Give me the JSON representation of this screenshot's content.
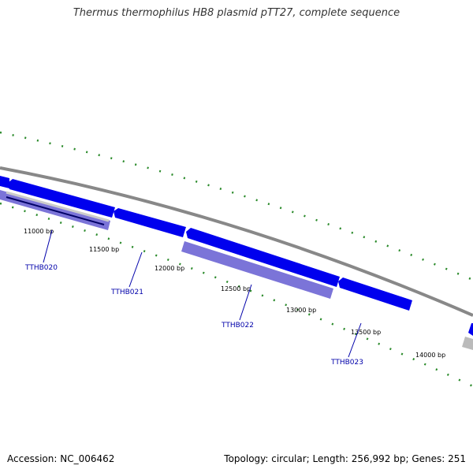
{
  "header": {
    "title": "Thermus thermophilus HB8 plasmid pTT27, complete sequence"
  },
  "footer": {
    "accession": "Accession: NC_006462",
    "summary": "Topology: circular; Length: 256,992 bp; Genes: 251"
  },
  "colors": {
    "forward_gene": "#0000ee",
    "reverse_gene": "#7b74d8",
    "backbone": "#888888",
    "gc_ticks": "#2a8a2a",
    "label": "#0000aa"
  },
  "bp_labels": [
    "11000 bp",
    "11500 bp",
    "12000 bp",
    "12500 bp",
    "13000 bp",
    "13500 bp",
    "14000 bp"
  ],
  "genes": [
    "TTHB020",
    "TTHB021",
    "TTHB022",
    "TTHB023"
  ]
}
